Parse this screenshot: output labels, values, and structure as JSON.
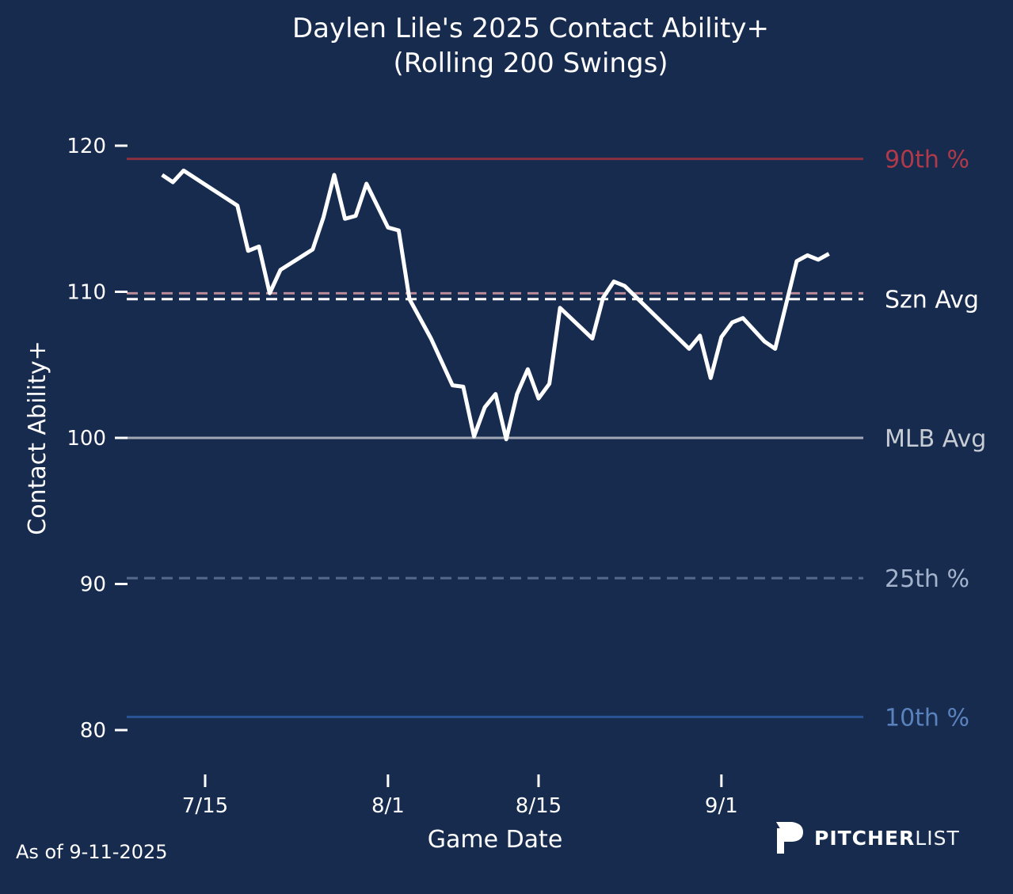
{
  "chart_data": {
    "type": "line",
    "title": "Daylen Lile's 2025 Contact Ability+",
    "subtitle": "(Rolling 200 Swings)",
    "xlabel": "Game Date",
    "ylabel": "Contact Ability+",
    "ylim": [
      78,
      122
    ],
    "yticks": [
      80,
      90,
      100,
      110,
      120
    ],
    "xticks": [
      {
        "date": "2025-07-15",
        "label": "7/15"
      },
      {
        "date": "2025-08-01",
        "label": "8/1"
      },
      {
        "date": "2025-08-15",
        "label": "8/15"
      },
      {
        "date": "2025-09-01",
        "label": "9/1"
      }
    ],
    "grid": false,
    "series": [
      {
        "name": "Contact Ability+",
        "color": "#ffffff",
        "points": [
          [
            "2025-07-11",
            118.0
          ],
          [
            "2025-07-12",
            117.5
          ],
          [
            "2025-07-13",
            118.3
          ],
          [
            "2025-07-18",
            115.9
          ],
          [
            "2025-07-19",
            112.8
          ],
          [
            "2025-07-20",
            113.1
          ],
          [
            "2025-07-21",
            109.9
          ],
          [
            "2025-07-22",
            111.5
          ],
          [
            "2025-07-25",
            112.9
          ],
          [
            "2025-07-26",
            115.1
          ],
          [
            "2025-07-27",
            118.0
          ],
          [
            "2025-07-28",
            115.0
          ],
          [
            "2025-07-29",
            115.2
          ],
          [
            "2025-07-30",
            117.4
          ],
          [
            "2025-08-01",
            114.4
          ],
          [
            "2025-08-02",
            114.2
          ],
          [
            "2025-08-03",
            109.5
          ],
          [
            "2025-08-05",
            106.8
          ],
          [
            "2025-08-07",
            103.6
          ],
          [
            "2025-08-08",
            103.5
          ],
          [
            "2025-08-09",
            100.1
          ],
          [
            "2025-08-10",
            102.1
          ],
          [
            "2025-08-11",
            103.0
          ],
          [
            "2025-08-12",
            99.9
          ],
          [
            "2025-08-13",
            103.0
          ],
          [
            "2025-08-14",
            104.7
          ],
          [
            "2025-08-15",
            102.7
          ],
          [
            "2025-08-16",
            103.7
          ],
          [
            "2025-08-17",
            108.9
          ],
          [
            "2025-08-20",
            106.8
          ],
          [
            "2025-08-21",
            109.6
          ],
          [
            "2025-08-22",
            110.7
          ],
          [
            "2025-08-23",
            110.4
          ],
          [
            "2025-08-29",
            106.1
          ],
          [
            "2025-08-30",
            107.0
          ],
          [
            "2025-08-31",
            104.1
          ],
          [
            "2025-09-01",
            106.9
          ],
          [
            "2025-09-02",
            107.9
          ],
          [
            "2025-09-03",
            108.2
          ],
          [
            "2025-09-05",
            106.6
          ],
          [
            "2025-09-06",
            106.1
          ],
          [
            "2025-09-08",
            112.1
          ],
          [
            "2025-09-09",
            112.5
          ],
          [
            "2025-09-10",
            112.2
          ],
          [
            "2025-09-11",
            112.6
          ]
        ]
      }
    ],
    "reference_lines": [
      {
        "label": "90th %",
        "value": 119.1,
        "color": "#8a3040",
        "label_color": "#b0394a",
        "dash": false
      },
      {
        "label": "",
        "value": 109.9,
        "color": "#b98a98",
        "label_color": "#b98a98",
        "dash": true
      },
      {
        "label": "Szn Avg",
        "value": 109.5,
        "color": "#ffffff",
        "label_color": "#ffffff",
        "dash": true
      },
      {
        "label": "MLB Avg",
        "value": 100,
        "color": "#a3a9b4",
        "label_color": "#c8ccd4",
        "dash": false
      },
      {
        "label": "25th %",
        "value": 90.4,
        "color": "#55698c",
        "label_color": "#a4b3cc",
        "dash": true
      },
      {
        "label": "10th %",
        "value": 80.9,
        "color": "#2a5595",
        "label_color": "#5a82bd",
        "dash": false
      }
    ]
  },
  "footer": {
    "as_of": "As of 9-11-2025"
  },
  "logo": {
    "bold": "PITCHER",
    "light": "LIST"
  }
}
